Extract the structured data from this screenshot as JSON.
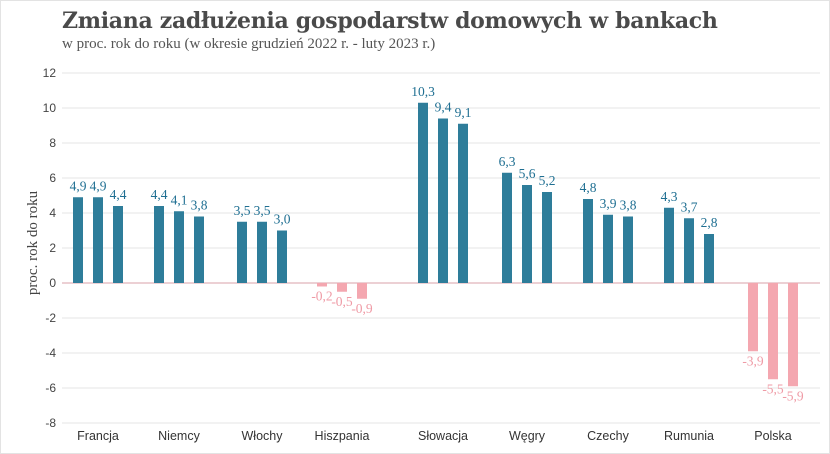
{
  "title": "Zmiana zadłużenia gospodarstw domowych w bankach",
  "subtitle": "w proc. rok do roku (w okresie grudzień 2022 r. - luty 2023 r.)",
  "colors": {
    "positive": "#2e7d9a",
    "negative": "#f4a7b0",
    "positive_label": "#1f6f92",
    "negative_label": "#ef9aa5",
    "grid": "#e6e6e6",
    "zero": "#d9a0a8"
  },
  "chart_data": {
    "type": "bar",
    "title": "Zmiana zadłużenia gospodarstw domowych w bankach",
    "subtitle": "w proc. rok do roku (w okresie grudzień 2022 r. - luty 2023 r.)",
    "xlabel": "",
    "ylabel": "proc. rok do roku",
    "ylim": [
      -8,
      12
    ],
    "yticks": [
      -8,
      -6,
      -4,
      -2,
      0,
      2,
      4,
      6,
      8,
      10,
      12
    ],
    "grid": false,
    "categories": [
      "Francja",
      "Niemcy",
      "Włochy",
      "Hiszpania",
      "Słowacja",
      "Węgry",
      "Czechy",
      "Rumunia",
      "Polska"
    ],
    "values": [
      [
        4.9,
        4.9,
        4.4
      ],
      [
        4.4,
        4.1,
        3.8
      ],
      [
        3.5,
        3.5,
        3.0
      ],
      [
        -0.2,
        -0.5,
        -0.9
      ],
      [
        10.3,
        9.4,
        9.1
      ],
      [
        6.3,
        5.6,
        5.2
      ],
      [
        4.8,
        3.9,
        3.8
      ],
      [
        4.3,
        3.7,
        2.8
      ],
      [
        -3.9,
        -5.5,
        -5.9
      ]
    ],
    "value_labels": [
      [
        "4,9",
        "4,9",
        "4,4"
      ],
      [
        "4,4",
        "4,1",
        "3,8"
      ],
      [
        "3,5",
        "3,5",
        "3,0"
      ],
      [
        "-0,2",
        "-0,5",
        "-0,9"
      ],
      [
        "10,3",
        "9,4",
        "9,1"
      ],
      [
        "6,3",
        "5,6",
        "5,2"
      ],
      [
        "4,8",
        "3,9",
        "3,8"
      ],
      [
        "4,3",
        "3,7",
        "2,8"
      ],
      [
        "-3,9",
        "-5,5",
        "-5,9"
      ]
    ]
  }
}
